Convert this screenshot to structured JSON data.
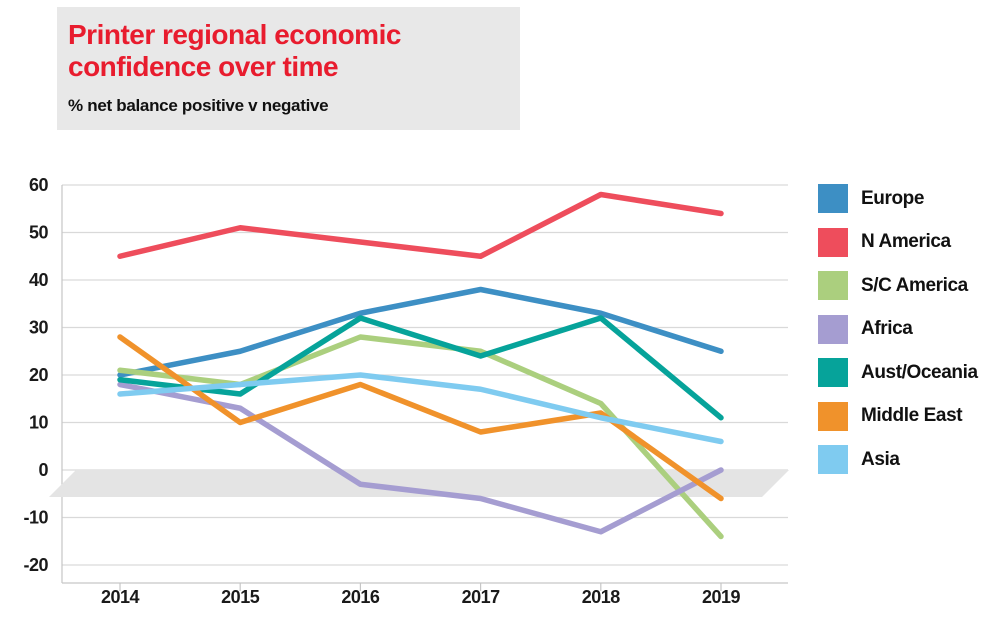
{
  "header": {
    "title_line1": "Printer regional economic",
    "title_line2": "confidence over time",
    "title": "Printer regional economic confidence over time",
    "subtitle": "% net balance positive v negative",
    "title_color": "#e81c2e",
    "box_color": "#e8e8e8"
  },
  "chart_data": {
    "type": "line",
    "title": "Printer regional economic confidence over time",
    "subtitle": "% net balance positive v negative",
    "x_categories": [
      "2014",
      "2015",
      "2016",
      "2017",
      "2018",
      "2019"
    ],
    "series": [
      {
        "name": "Europe",
        "color": "#3d8fc4",
        "values": [
          20,
          25,
          33,
          38,
          33,
          25
        ]
      },
      {
        "name": "N America",
        "color": "#ee4d5c",
        "values": [
          45,
          51,
          48,
          45,
          58,
          54
        ]
      },
      {
        "name": "S/C America",
        "color": "#abcf7e",
        "values": [
          21,
          18,
          28,
          25,
          14,
          -14
        ]
      },
      {
        "name": "Africa",
        "color": "#a59dd1",
        "values": [
          18,
          13,
          -3,
          -6,
          -13,
          0
        ]
      },
      {
        "name": "Aust/Oceania",
        "color": "#06a39a",
        "values": [
          19,
          16,
          32,
          24,
          32,
          11
        ]
      },
      {
        "name": "Middle East",
        "color": "#f0922b",
        "values": [
          28,
          10,
          18,
          8,
          12,
          -6
        ]
      },
      {
        "name": "Asia",
        "color": "#7fcbf0",
        "values": [
          16,
          18,
          20,
          17,
          11,
          6
        ]
      }
    ],
    "ylim": [
      -20,
      60
    ],
    "ytick_step": 10,
    "grid": true,
    "legend_position": "right",
    "zero_shadow_band": true,
    "gridline_color": "#d9d9d9",
    "axis_color": "#c6c6c6",
    "band_color": "#e4e4e4",
    "label_color": "#1a1a1a"
  }
}
